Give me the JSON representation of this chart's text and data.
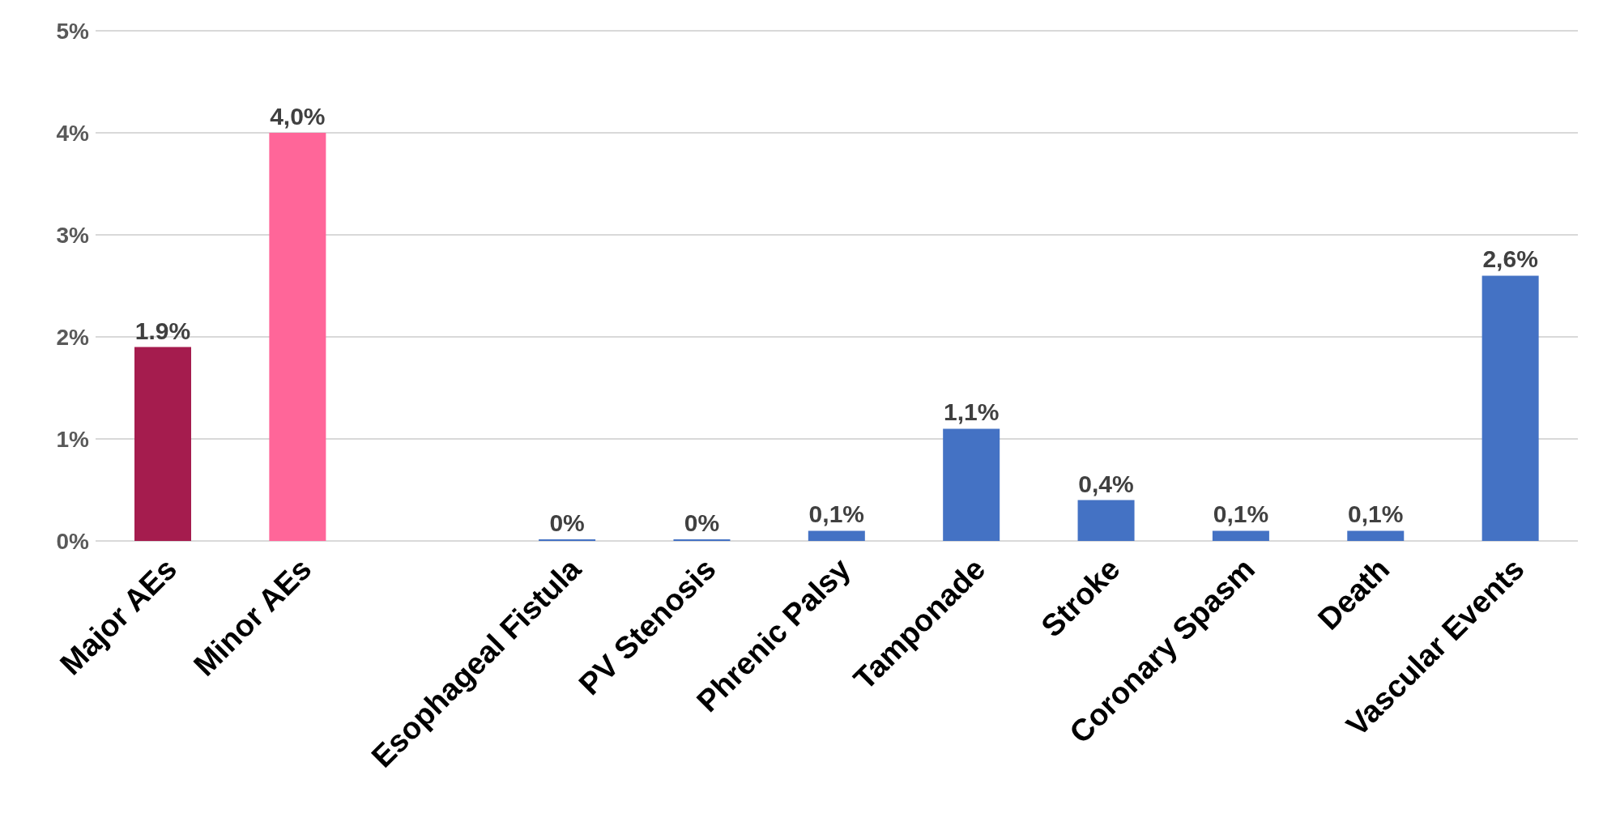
{
  "chart_data": {
    "type": "bar",
    "categories": [
      "Major AEs",
      "Minor AEs",
      null,
      "Esophageal Fistula",
      "PV Stenosis",
      "Phrenic Palsy",
      "Tamponade",
      "Stroke",
      "Coronary Spasm",
      "Death",
      "Vascular Events"
    ],
    "values": [
      1.9,
      4.0,
      null,
      0,
      0,
      0.1,
      1.1,
      0.4,
      0.1,
      0.1,
      2.6
    ],
    "colors": [
      "#a51c4e",
      "#ff6699",
      "#4472c4",
      "#4472c4",
      "#4472c4",
      "#4472c4",
      "#4472c4",
      "#4472c4",
      "#4472c4",
      "#4472c4",
      "#4472c4"
    ],
    "value_labels": [
      "1.9%",
      "4,0%",
      null,
      "0%",
      "0%",
      "0,1%",
      "1,1%",
      "0,4%",
      "0,1%",
      "0,1%",
      "2,6%"
    ],
    "ylim": [
      0,
      5
    ],
    "yticks": [
      {
        "value": 0,
        "label": "0%"
      },
      {
        "value": 1,
        "label": "1%"
      },
      {
        "value": 2,
        "label": "2%"
      },
      {
        "value": 3,
        "label": "3%"
      },
      {
        "value": 4,
        "label": "4%"
      },
      {
        "value": 5,
        "label": "5%"
      }
    ],
    "grid": "y"
  }
}
